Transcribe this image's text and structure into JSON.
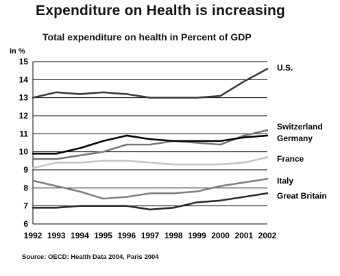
{
  "header": {
    "title": "Expenditure on Health is increasing",
    "subtitle": "Total expenditure on health in Percent of GDP"
  },
  "footer": {
    "source": "Source: OECD: Health Data 2004, Paris 2004"
  },
  "chart_data": {
    "type": "line",
    "title": "Total expenditure on health in Percent of GDP",
    "xlabel": "",
    "ylabel": "in %",
    "x": [
      1992,
      1993,
      1994,
      1995,
      1996,
      1997,
      1998,
      1999,
      2000,
      2001,
      2002
    ],
    "ylim": [
      6,
      15
    ],
    "yticks": [
      6,
      7,
      8,
      9,
      10,
      11,
      12,
      13,
      14,
      15
    ],
    "grid": "horizontal",
    "legend": "labels at right end of lines",
    "series": [
      {
        "name": "U.S.",
        "color": "#3a3a3a",
        "values": [
          13.0,
          13.3,
          13.2,
          13.3,
          13.2,
          13.0,
          13.0,
          13.0,
          13.1,
          13.9,
          14.6
        ]
      },
      {
        "name": "Switzerland",
        "color": "#777777",
        "values": [
          9.6,
          9.6,
          9.8,
          10.0,
          10.4,
          10.4,
          10.6,
          10.5,
          10.4,
          10.9,
          11.2
        ]
      },
      {
        "name": "Germany",
        "color": "#000000",
        "values": [
          9.9,
          9.9,
          10.2,
          10.6,
          10.9,
          10.7,
          10.6,
          10.6,
          10.6,
          10.8,
          10.9
        ]
      },
      {
        "name": "France",
        "color": "#c4c4c4",
        "values": [
          9.1,
          9.4,
          9.4,
          9.5,
          9.5,
          9.4,
          9.3,
          9.3,
          9.3,
          9.4,
          9.7
        ]
      },
      {
        "name": "Italy",
        "color": "#7f7f7f",
        "values": [
          8.4,
          8.1,
          7.8,
          7.4,
          7.5,
          7.7,
          7.7,
          7.8,
          8.1,
          8.3,
          8.5
        ]
      },
      {
        "name": "Great Britain",
        "color": "#2b2b2b",
        "values": [
          6.9,
          6.9,
          7.0,
          7.0,
          7.0,
          6.8,
          6.9,
          7.2,
          7.3,
          7.5,
          7.7
        ]
      }
    ]
  }
}
